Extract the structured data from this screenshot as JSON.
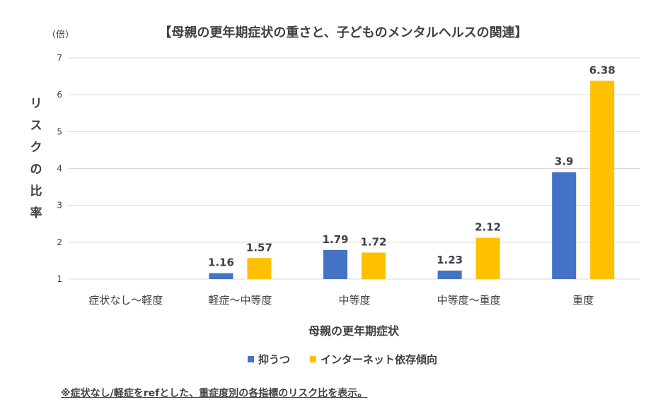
{
  "chart_data": {
    "type": "bar",
    "title": "【母親の更年期症状の重さと、子どものメンタルヘルスの関連】",
    "unit_label": "（倍）",
    "ylabel": "リスクの比率",
    "xlabel": "母親の更年期症状",
    "categories": [
      "症状なし～軽度",
      "軽症～中等度",
      "中等度",
      "中等度～重度",
      "重度"
    ],
    "series": [
      {
        "name": "抑うつ",
        "color": "#4472C4",
        "values": [
          null,
          1.16,
          1.79,
          1.23,
          3.9
        ]
      },
      {
        "name": "インターネット依存傾向",
        "color": "#FFC000",
        "values": [
          null,
          1.57,
          1.72,
          2.12,
          6.38
        ]
      }
    ],
    "data_labels": [
      [
        "",
        "1.16",
        "1.79",
        "1.23",
        "3.9"
      ],
      [
        "",
        "1.57",
        "1.72",
        "2.12",
        "6.38"
      ]
    ],
    "ylim": [
      1,
      7
    ],
    "yticks": [
      "1",
      "2",
      "3",
      "4",
      "5",
      "6",
      "7"
    ],
    "grid": true,
    "legend": "bottom",
    "footnote": "※症状なし/軽症をrefとした、重症度別の各指標のリスク比を表示。"
  }
}
